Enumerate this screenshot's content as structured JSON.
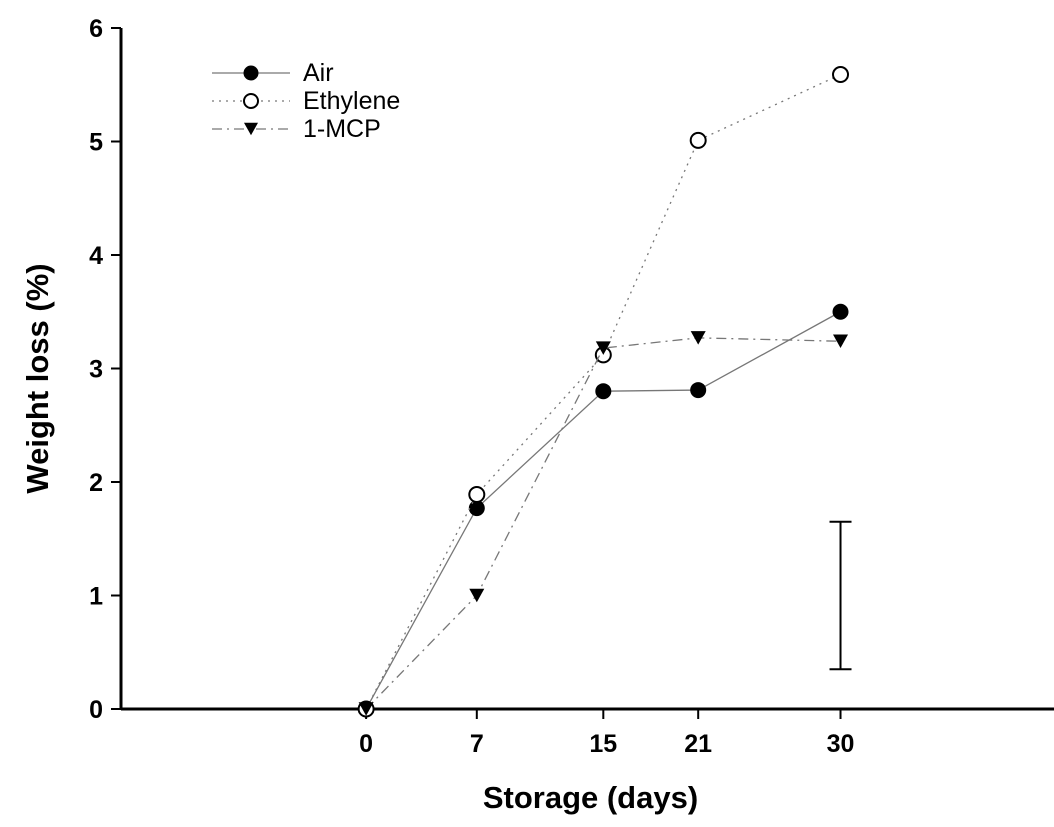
{
  "chart_data": {
    "type": "line",
    "x": [
      0,
      7,
      15,
      21,
      30
    ],
    "x_tick_labels": [
      "0",
      "7",
      "15",
      "21",
      "30"
    ],
    "y_tick_labels": [
      "0",
      "1",
      "2",
      "3",
      "4",
      "5",
      "6"
    ],
    "xlabel": "Storage (days)",
    "ylabel": "Weight loss (%)",
    "ylim": [
      0,
      6
    ],
    "grid": false,
    "legend_position": "top-left",
    "series": [
      {
        "name": "Air",
        "marker": "filled-circle",
        "line_style": "solid",
        "color": "#000000",
        "values": [
          0,
          1.77,
          2.8,
          2.81,
          3.5
        ]
      },
      {
        "name": "Ethylene",
        "marker": "open-circle",
        "line_style": "dotted",
        "color": "#000000",
        "values": [
          0,
          1.89,
          3.12,
          5.01,
          5.59
        ]
      },
      {
        "name": "1-MCP",
        "marker": "filled-triangle-down",
        "line_style": "dash-dot",
        "color": "#000000",
        "values": [
          0,
          1.0,
          3.18,
          3.27,
          3.24
        ]
      }
    ],
    "error_bar": {
      "x": 30,
      "low": 0.35,
      "high": 1.65
    }
  }
}
